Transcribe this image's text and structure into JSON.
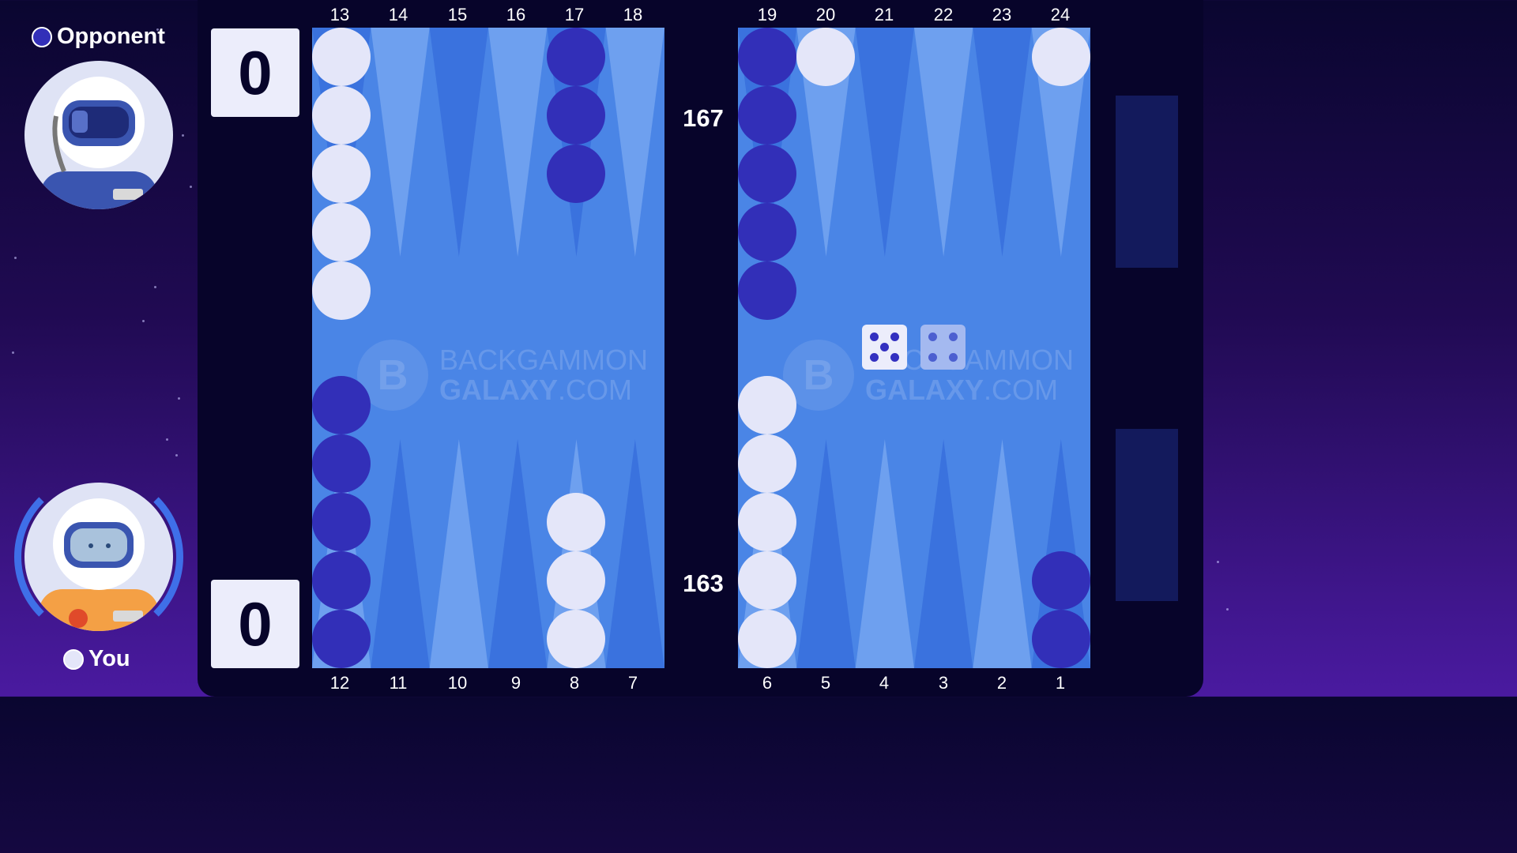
{
  "opponent": {
    "label": "Opponent",
    "color": "#322fb8",
    "score": "0",
    "pip_count": "167",
    "avatar_icon": "astronaut-avatar-icon"
  },
  "player": {
    "label": "You",
    "color": "#e4e6f9",
    "score": "0",
    "pip_count": "163",
    "avatar_icon": "astronaut-avatar-icon",
    "active": true
  },
  "top_points": [
    "13",
    "14",
    "15",
    "16",
    "17",
    "18",
    "19",
    "20",
    "21",
    "22",
    "23",
    "24"
  ],
  "bottom_points": [
    "12",
    "11",
    "10",
    "9",
    "8",
    "7",
    "6",
    "5",
    "4",
    "3",
    "2",
    "1"
  ],
  "watermark": {
    "line1": "BACKGAMMON",
    "line2_bold": "GALAXY",
    "line2_rest": ".COM",
    "logo_icon": "galaxy-logo-icon"
  },
  "dice": [
    5,
    4
  ],
  "checkers": [
    {
      "point": 13,
      "color": "white",
      "count": 5
    },
    {
      "point": 17,
      "color": "blue",
      "count": 3
    },
    {
      "point": 19,
      "color": "blue",
      "count": 5
    },
    {
      "point": 20,
      "color": "white",
      "count": 1
    },
    {
      "point": 24,
      "color": "white",
      "count": 1
    },
    {
      "point": 12,
      "color": "blue",
      "count": 5
    },
    {
      "point": 8,
      "color": "white",
      "count": 3
    },
    {
      "point": 6,
      "color": "white",
      "count": 5
    },
    {
      "point": 1,
      "color": "blue",
      "count": 2
    }
  ],
  "colors": {
    "board": "#4a85e6",
    "triangle_light": "#6ea0ef",
    "triangle_dark": "#3a72de",
    "tray": "#131a5c"
  }
}
